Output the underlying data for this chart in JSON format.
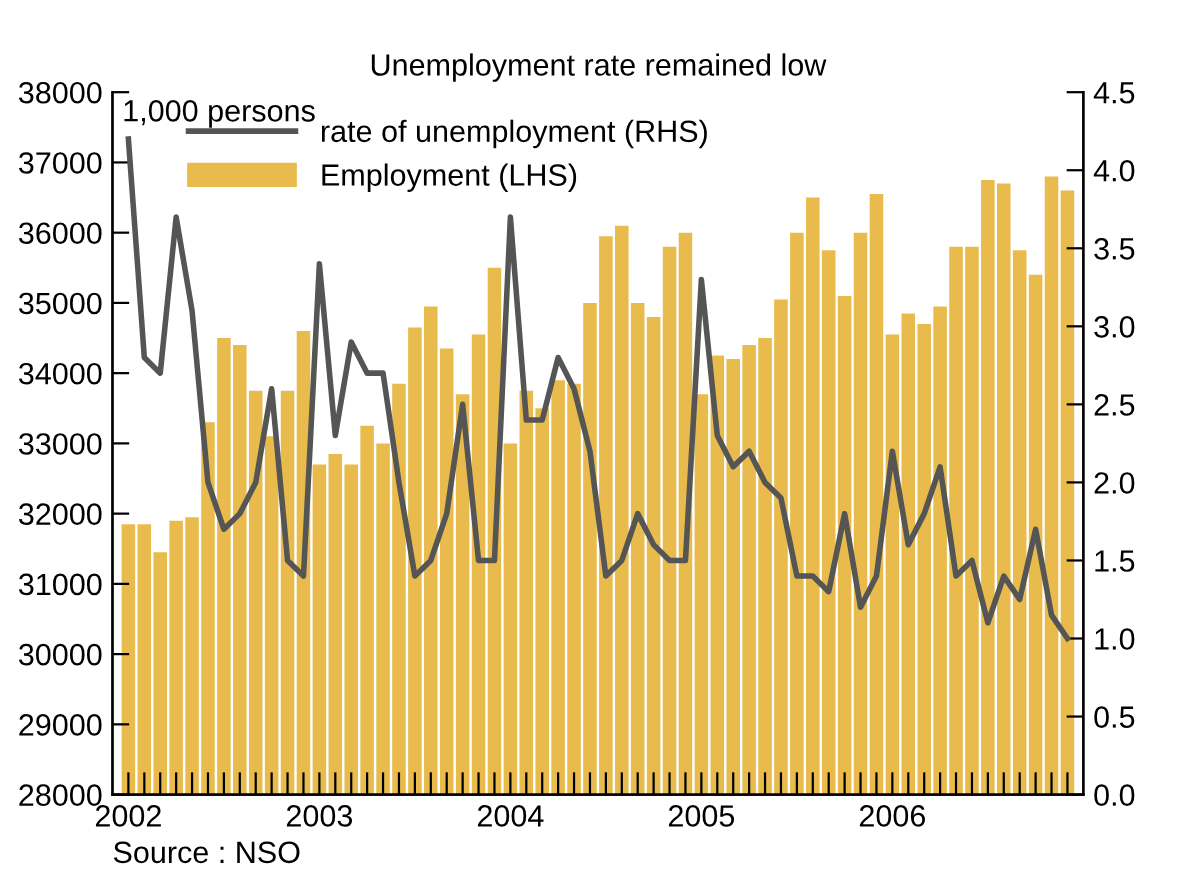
{
  "chart_data": {
    "type": "bar",
    "title": "Unemployment rate remained low",
    "ylabel": "1,000 persons",
    "categories": [
      "2002",
      null,
      null,
      null,
      null,
      null,
      null,
      null,
      null,
      null,
      null,
      null,
      "2003",
      null,
      null,
      null,
      null,
      null,
      null,
      null,
      null,
      null,
      null,
      null,
      "2004",
      null,
      null,
      null,
      null,
      null,
      null,
      null,
      null,
      null,
      null,
      null,
      "2005",
      null,
      null,
      null,
      null,
      null,
      null,
      null,
      null,
      null,
      null,
      null,
      "2006",
      null,
      null,
      null,
      null,
      null,
      null,
      null,
      null,
      null,
      null,
      null
    ],
    "series": [
      {
        "name": "rate of unemployment (RHS)",
        "type": "line",
        "axis": "y2",
        "color": "#555555",
        "values": [
          4.2,
          2.8,
          2.7,
          3.7,
          3.1,
          2.0,
          1.7,
          1.8,
          2.0,
          2.6,
          1.5,
          1.4,
          3.4,
          2.3,
          2.9,
          2.7,
          2.7,
          2.0,
          1.4,
          1.5,
          1.8,
          2.5,
          1.5,
          1.5,
          3.7,
          2.4,
          2.4,
          2.8,
          2.6,
          2.2,
          1.4,
          1.5,
          1.8,
          1.6,
          1.5,
          1.5,
          3.3,
          2.3,
          2.1,
          2.2,
          2.0,
          1.9,
          1.4,
          1.4,
          1.3,
          1.8,
          1.2,
          1.4,
          2.2,
          1.6,
          1.8,
          2.1,
          1.4,
          1.5,
          1.1,
          1.4,
          1.25,
          1.7,
          1.15,
          1.0
        ]
      },
      {
        "name": "Employment (LHS)",
        "color": "#e8bb4c",
        "values": [
          31850,
          31850,
          31450,
          31900,
          31950,
          33300,
          34500,
          34400,
          33750,
          33100,
          33750,
          34600,
          32700,
          32850,
          32700,
          33250,
          33000,
          33850,
          34650,
          34950,
          34350,
          33700,
          34550,
          35500,
          33000,
          33750,
          33500,
          33900,
          33850,
          35000,
          35950,
          36100,
          35000,
          34800,
          35800,
          36000,
          33700,
          34250,
          34200,
          34400,
          34500,
          35050,
          36000,
          36500,
          35750,
          35100,
          36000,
          36550,
          34550,
          34850,
          34700,
          34950,
          35800,
          35800,
          36750,
          36700,
          35750,
          35400,
          36800,
          36600
        ]
      }
    ],
    "ylim": [
      28000,
      38000
    ],
    "yticks": [
      28000,
      29000,
      30000,
      31000,
      32000,
      33000,
      34000,
      35000,
      36000,
      37000,
      38000
    ],
    "y2lim": [
      0,
      4.5
    ],
    "y2ticks": [
      {
        "value": 0,
        "label": "0.0"
      },
      {
        "value": 0.5,
        "label": "0.5"
      },
      {
        "value": 1,
        "label": "1.0"
      },
      {
        "value": 1.5,
        "label": "1.5"
      },
      {
        "value": 2,
        "label": "2.0"
      },
      {
        "value": 2.5,
        "label": "2.5"
      },
      {
        "value": 3,
        "label": "3.0"
      },
      {
        "value": 3.5,
        "label": "3.5"
      },
      {
        "value": 4,
        "label": "4.0"
      },
      {
        "value": 4.5,
        "label": "4.5"
      }
    ],
    "legend": "top left",
    "grid": false,
    "annotations": [
      "Source : NSO"
    ]
  }
}
